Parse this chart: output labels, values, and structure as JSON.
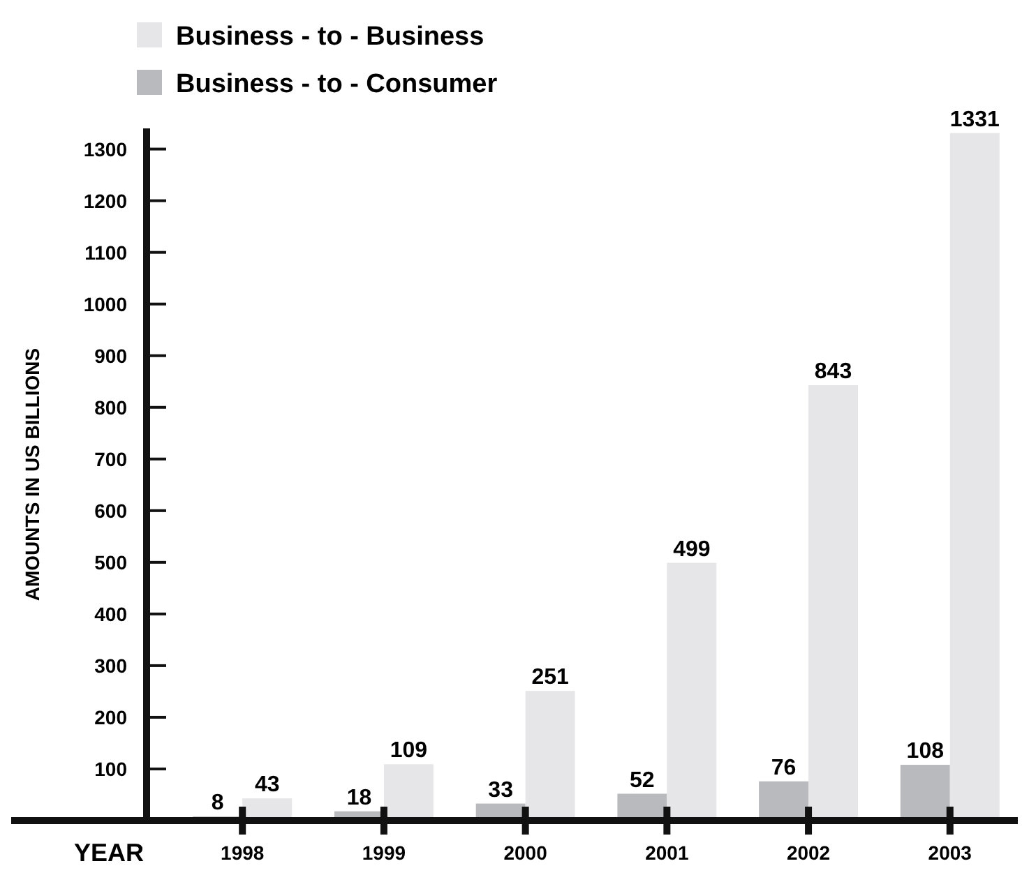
{
  "chart_data": {
    "type": "bar",
    "xlabel": "YEAR",
    "ylabel": "AMOUNTS IN US BILLIONS",
    "categories": [
      "1998",
      "1999",
      "2000",
      "2001",
      "2002",
      "2003"
    ],
    "series": [
      {
        "name": "Business - to - Consumer",
        "color": "#b9babe",
        "values": [
          8,
          18,
          33,
          52,
          76,
          108
        ]
      },
      {
        "name": "Business - to - Business",
        "color": "#e6e6e8",
        "values": [
          43,
          109,
          251,
          499,
          843,
          1331
        ]
      }
    ],
    "ylim": [
      0,
      1340
    ],
    "yticks": [
      100,
      200,
      300,
      400,
      500,
      600,
      700,
      800,
      900,
      1000,
      1100,
      1200,
      1300
    ],
    "data_labels": true,
    "legend": "top left",
    "grid": false
  }
}
